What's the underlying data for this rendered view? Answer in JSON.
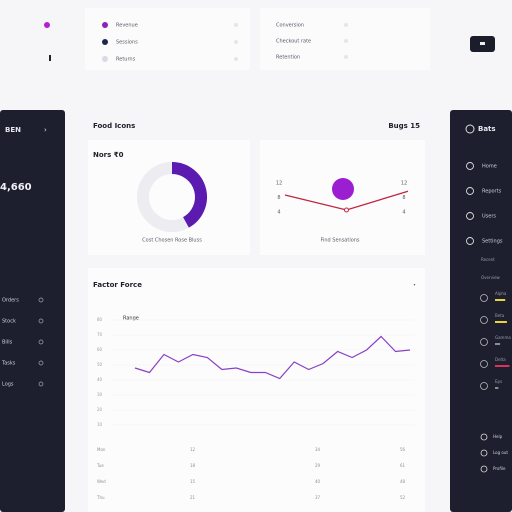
{
  "legend": [
    {
      "label": "Revenue",
      "color": "#8e1fb8"
    },
    {
      "label": "Sessions",
      "color": "#1c2a4a"
    },
    {
      "label": "Returns",
      "color": "#d8dbe4"
    }
  ],
  "stats": [
    "Conversion",
    "Checkout rate",
    "Retention"
  ],
  "sidebar_left": {
    "title": "BEN",
    "total": "4,660",
    "items": [
      "Orders",
      "Stock",
      "Bills",
      "Tasks",
      "Logs"
    ]
  },
  "main": {
    "title": "Food Icons",
    "badge": "Bugs 15"
  },
  "donut": {
    "title": "Nors ₹0",
    "value": 42,
    "color": "#5b1ab0",
    "caption": "Cost Chosen Rose Bluss"
  },
  "spark": {
    "values": [
      40,
      20,
      45
    ],
    "ylim": [
      0,
      60
    ],
    "color": "#c0253f",
    "highlight_color": "#9b1fd1",
    "labels_left": [
      "12",
      "8",
      "4"
    ],
    "labels_right": [
      "12",
      "8",
      "4"
    ],
    "caption": "Find Sensations"
  },
  "trend": {
    "title": "Factor Force",
    "legend": "Range",
    "color": "#8a3fc4",
    "ylim": [
      0,
      80
    ],
    "yticks": [
      10,
      20,
      30,
      40,
      50,
      60,
      70,
      80
    ],
    "values": [
      48,
      45,
      57,
      52,
      57,
      55,
      47,
      48,
      45,
      45,
      41,
      52,
      47,
      51,
      59,
      55,
      60,
      69,
      59,
      60
    ]
  },
  "table": {
    "rows": [
      [
        "Mon",
        "12",
        "34",
        "56"
      ],
      [
        "Tue",
        "18",
        "29",
        "61"
      ],
      [
        "Wed",
        "15",
        "40",
        "48"
      ],
      [
        "Thu",
        "21",
        "37",
        "52"
      ]
    ]
  },
  "sidebar_right": {
    "title": "Bats",
    "items": [
      "Home",
      "Reports",
      "Users",
      "Settings"
    ],
    "sections": [
      "Recent",
      "Overview"
    ],
    "progress": [
      {
        "label": "Alpha",
        "value": 60,
        "color": "#e8d43c"
      },
      {
        "label": "Beta",
        "value": 70,
        "color": "#e8d43c"
      },
      {
        "label": "Gamma",
        "value": 30,
        "color": "#8a8c99"
      },
      {
        "label": "Delta",
        "value": 85,
        "color": "#d8335a"
      },
      {
        "label": "Eps",
        "value": 20,
        "color": "#8a8c99"
      }
    ],
    "footer": [
      "Help",
      "Log out",
      "Profile"
    ]
  }
}
